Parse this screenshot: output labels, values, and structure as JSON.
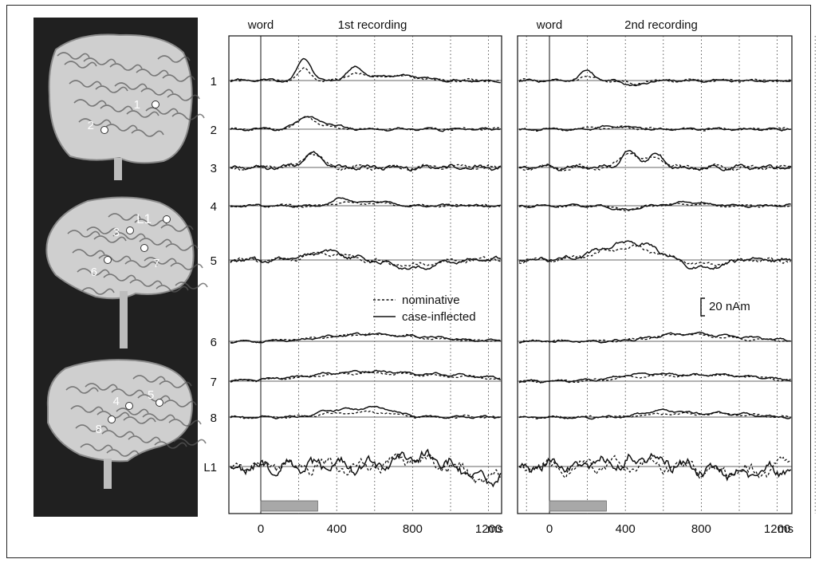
{
  "chart_data": [
    {
      "type": "line",
      "title": "1st recording",
      "stimulus_label": "word",
      "x_ticks": [
        "0",
        "400",
        "800",
        "1200"
      ],
      "x_unit": "ms",
      "xlim": [
        -100,
        1550
      ],
      "grid": "vertical dotted every 200 ms",
      "stimulus_bar": [
        0,
        300
      ],
      "series_names": [
        "nominative",
        "case-inflected"
      ],
      "rows": [
        {
          "label": "1",
          "peaks": [
            [
              230,
              25,
              35
            ],
            [
              500,
              14,
              40
            ],
            [
              700,
              6,
              120
            ]
          ]
        },
        {
          "label": "2",
          "peaks": [
            [
              240,
              14,
              45
            ],
            [
              350,
              6,
              60
            ]
          ]
        },
        {
          "label": "3",
          "peaks": [
            [
              270,
              16,
              50
            ]
          ]
        },
        {
          "label": "4",
          "peaks": [
            [
              430,
              8,
              50
            ],
            [
              600,
              5,
              80
            ]
          ]
        },
        {
          "label": "5",
          "peaks": [
            [
              350,
              9,
              90
            ],
            [
              800,
              -10,
              100
            ]
          ]
        },
        {
          "label": "6",
          "peaks": [
            [
              550,
              8,
              200
            ],
            [
              900,
              3,
              150
            ]
          ]
        },
        {
          "label": "7",
          "peaks": [
            [
              560,
              11,
              300
            ],
            [
              1100,
              4,
              200
            ]
          ]
        },
        {
          "label": "8",
          "peaks": [
            [
              380,
              7,
              80
            ],
            [
              600,
              11,
              100
            ]
          ]
        },
        {
          "label": "L1",
          "peaks": [
            [
              850,
              10,
              150
            ],
            [
              1200,
              -15,
              120
            ]
          ]
        }
      ]
    },
    {
      "type": "line",
      "title": "2nd recording",
      "stimulus_label": "word",
      "x_ticks": [
        "0",
        "400",
        "800",
        "1200"
      ],
      "x_unit": "ms",
      "xlim": [
        -100,
        1550
      ],
      "grid": "vertical dotted every 200 ms",
      "stimulus_bar": [
        0,
        300
      ],
      "scale_bar_label": "20 nAm",
      "rows": [
        {
          "label": "1",
          "peaks": [
            [
              200,
              10,
              40
            ],
            [
              450,
              -6,
              50
            ]
          ]
        },
        {
          "label": "2",
          "peaks": [
            [
              350,
              4,
              80
            ]
          ]
        },
        {
          "label": "3",
          "peaks": [
            [
              420,
              18,
              45
            ],
            [
              560,
              16,
              40
            ]
          ]
        },
        {
          "label": "4",
          "peaks": [
            [
              400,
              -5,
              60
            ],
            [
              750,
              4,
              80
            ]
          ]
        },
        {
          "label": "5",
          "peaks": [
            [
              420,
              20,
              150
            ],
            [
              800,
              -10,
              100
            ]
          ]
        },
        {
          "label": "6",
          "peaks": [
            [
              700,
              8,
              150
            ],
            [
              1000,
              4,
              150
            ]
          ]
        },
        {
          "label": "7",
          "peaks": [
            [
              500,
              8,
              150
            ],
            [
              900,
              7,
              200
            ]
          ]
        },
        {
          "label": "8",
          "peaks": [
            [
              600,
              7,
              100
            ],
            [
              900,
              4,
              150
            ]
          ]
        },
        {
          "label": "L1",
          "peaks": [
            [
              500,
              8,
              150
            ],
            [
              1000,
              -8,
              150
            ]
          ]
        }
      ]
    }
  ],
  "brains": {
    "labels": [
      "1",
      "2",
      "L1",
      "3",
      "7",
      "6",
      "4",
      "5",
      "8"
    ]
  }
}
